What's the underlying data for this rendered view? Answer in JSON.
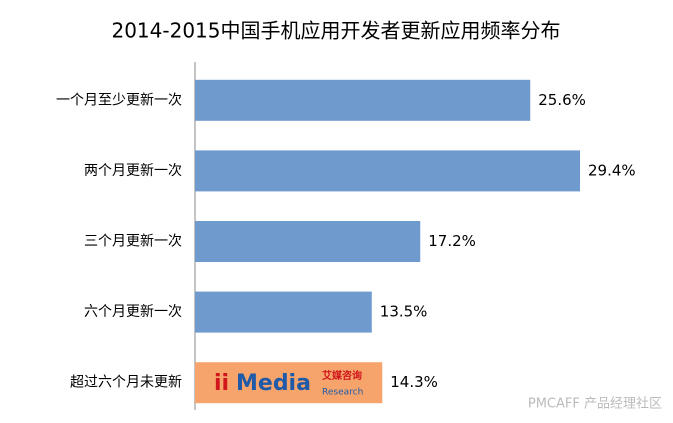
{
  "chart_data": {
    "type": "hbar",
    "title": "2014-2015中国手机应用开发者更新应用频率分布",
    "categories": [
      "一个月至少更新一次",
      "两个月更新一次",
      "三个月更新一次",
      "六个月更新一次",
      "超过六个月未更新"
    ],
    "values": [
      25.6,
      29.4,
      17.2,
      13.5,
      14.3
    ],
    "value_labels": [
      "25.6%",
      "29.4%",
      "17.2%",
      "13.5%",
      "14.3%"
    ],
    "colors": [
      "#6f9acd",
      "#6f9acd",
      "#6f9acd",
      "#6f9acd",
      "#f6a46c"
    ],
    "logo": {
      "brand": "Media",
      "cn": "艾媒咨询",
      "sub": "Research"
    },
    "watermark": "PMCAFF 产品经理社区"
  }
}
